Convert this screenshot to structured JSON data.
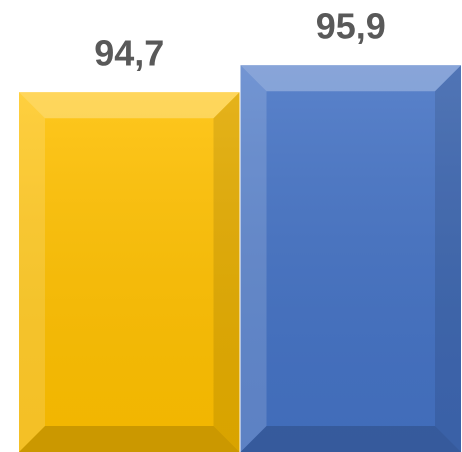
{
  "chart_data": {
    "type": "bar",
    "categories": [
      null,
      null
    ],
    "series": [
      {
        "values": [
          94.7,
          95.9
        ],
        "value_labels": [
          "94,7",
          "95,9"
        ],
        "colors": [
          "#ffc000",
          "#4472c4"
        ]
      }
    ],
    "ylim": [
      78.7,
      98.8
    ]
  }
}
